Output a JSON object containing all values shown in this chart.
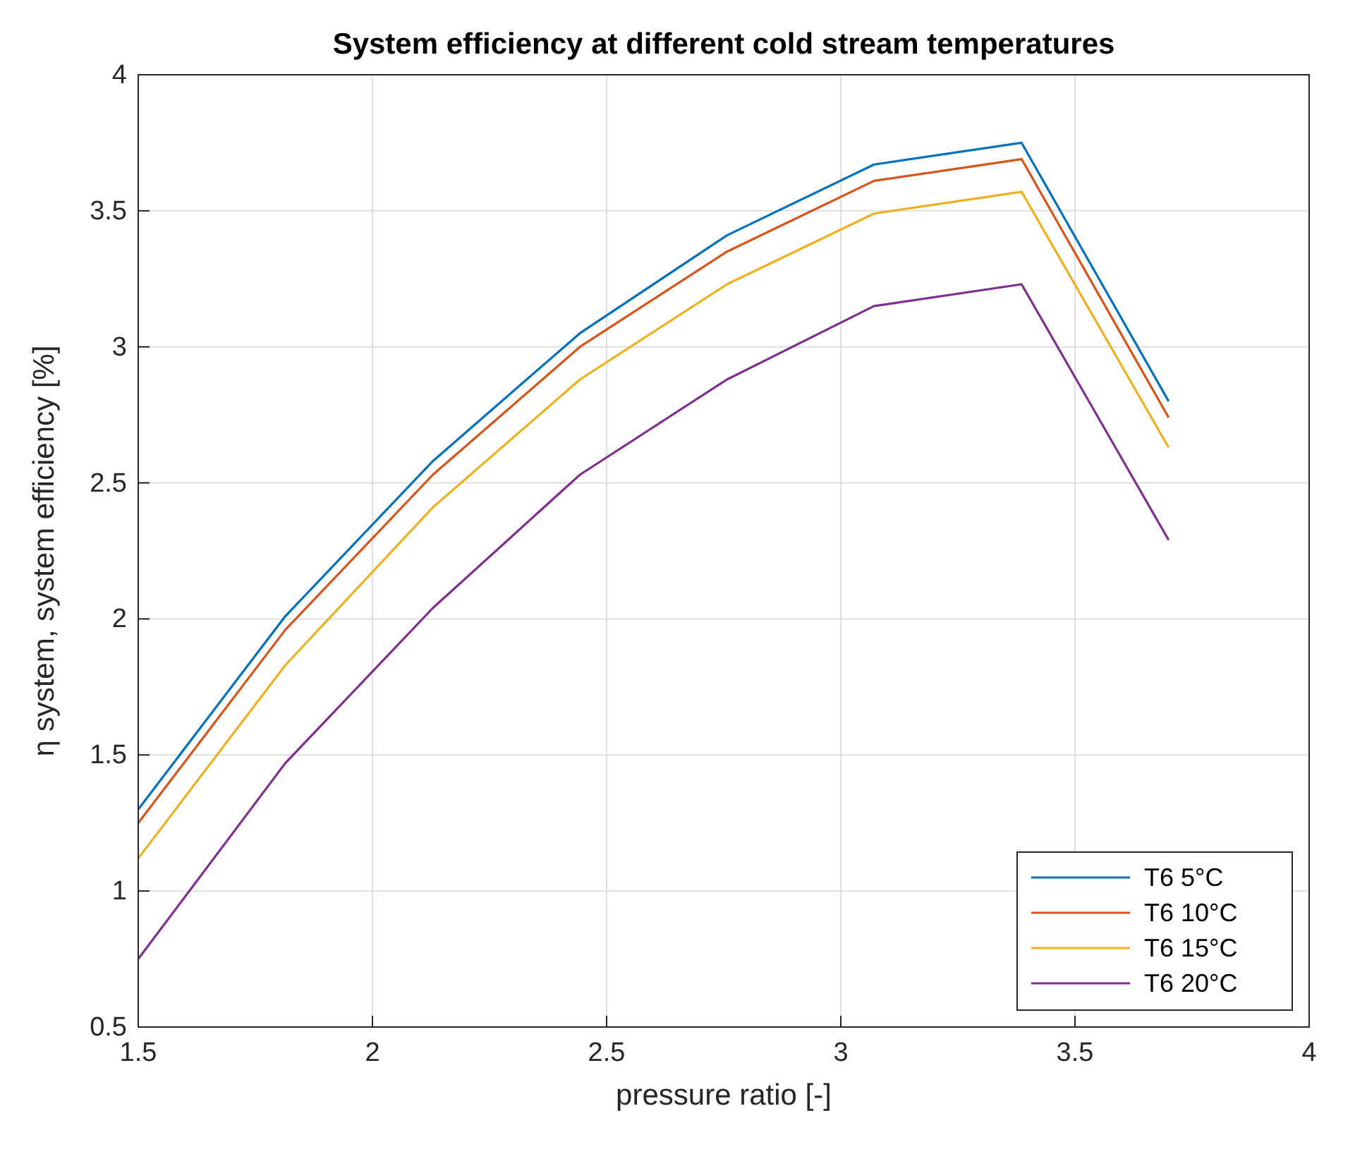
{
  "chart_data": {
    "type": "line",
    "title": "System efficiency at different cold stream temperatures",
    "xlabel": "pressure ratio [-]",
    "ylabel": "η system, system efficiency [%]",
    "x": [
      1.5,
      1.814,
      2.129,
      2.443,
      2.757,
      3.071,
      3.386,
      3.7
    ],
    "series": [
      {
        "name": "T6 5°C",
        "color": "#0072bd",
        "values": [
          1.3,
          2.01,
          2.58,
          3.05,
          3.41,
          3.67,
          3.75,
          2.8
        ]
      },
      {
        "name": "T6 10°C",
        "color": "#d95319",
        "values": [
          1.25,
          1.96,
          2.53,
          3.0,
          3.35,
          3.61,
          3.69,
          2.74
        ]
      },
      {
        "name": "T6 15°C",
        "color": "#edb120",
        "values": [
          1.12,
          1.83,
          2.41,
          2.88,
          3.23,
          3.49,
          3.57,
          2.63
        ]
      },
      {
        "name": "T6 20°C",
        "color": "#7e2f8e",
        "values": [
          0.75,
          1.47,
          2.04,
          2.53,
          2.88,
          3.15,
          3.23,
          2.29
        ]
      }
    ],
    "xlim": [
      1.5,
      4
    ],
    "xticks": [
      1.5,
      2,
      2.5,
      3,
      3.5,
      4
    ],
    "ylim": [
      0.5,
      4
    ],
    "yticks": [
      0.5,
      1,
      1.5,
      2,
      2.5,
      3,
      3.5,
      4
    ],
    "grid": true,
    "legend": "bottom right",
    "marker": "none",
    "line_style": "solid"
  }
}
